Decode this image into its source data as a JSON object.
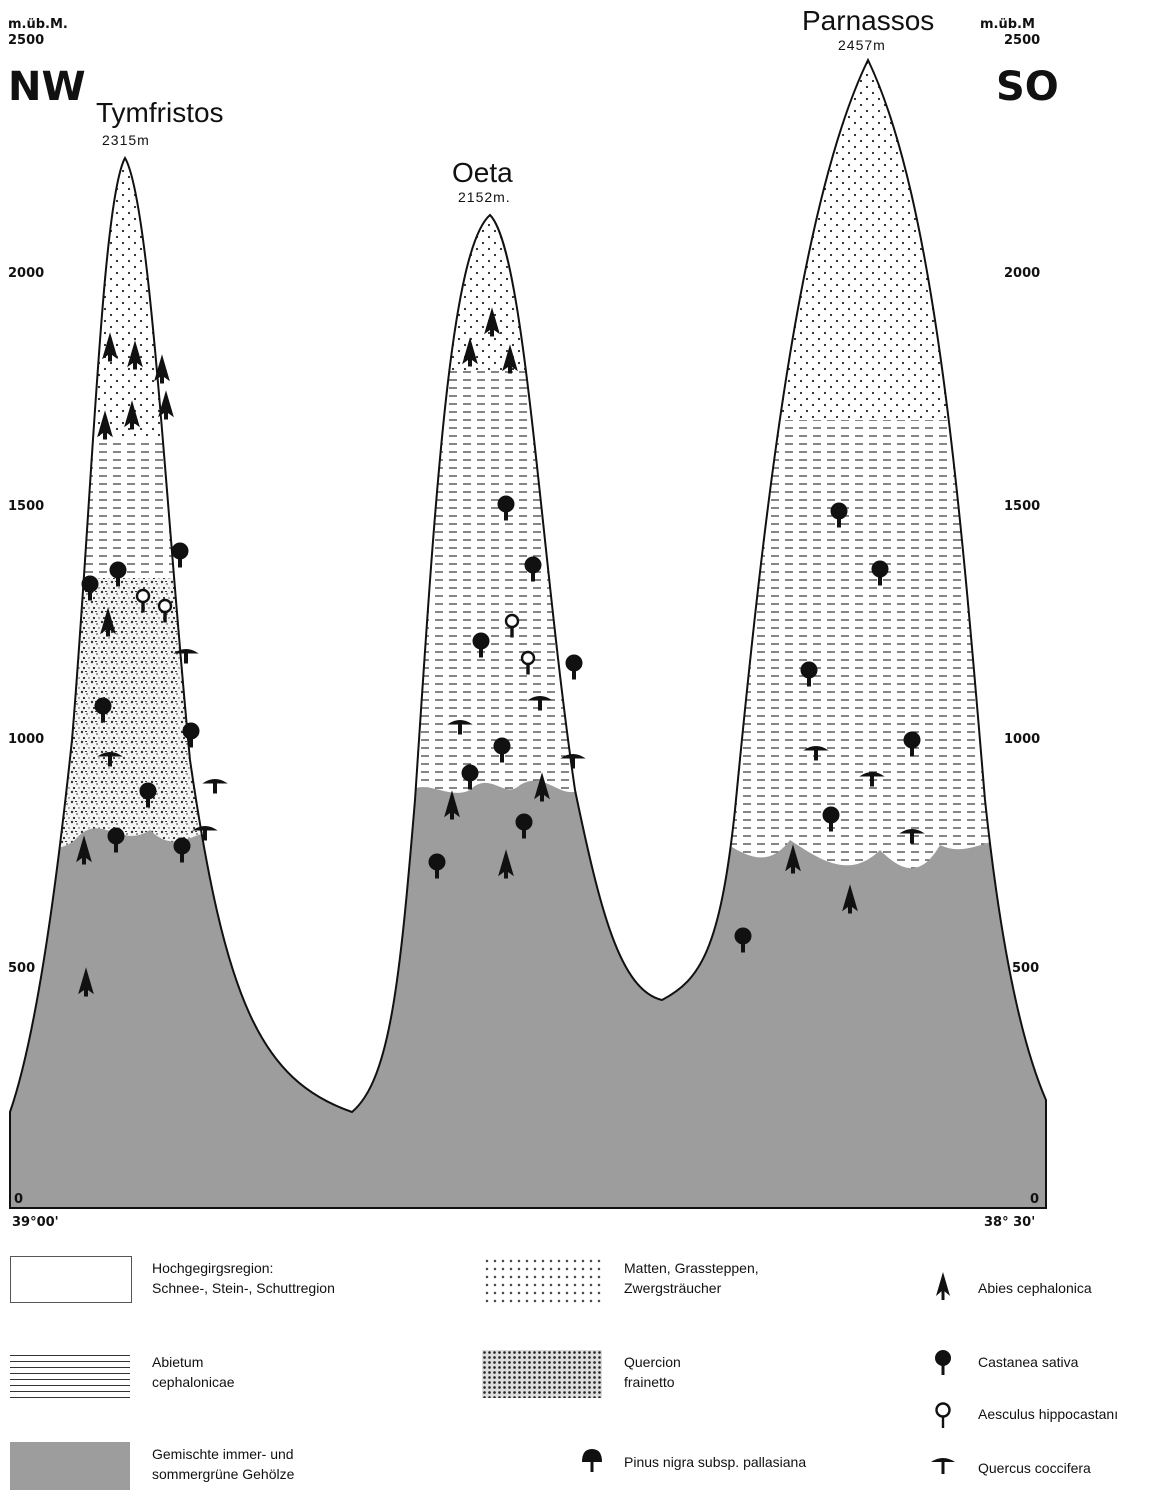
{
  "axis": {
    "unit_left": "m.üb.M.",
    "unit_right": "m.üb.M",
    "ticks": [
      "2500",
      "2000",
      "1500",
      "1000",
      "500",
      "0"
    ],
    "bottom_left": "39°00'",
    "bottom_right": "38° 30'"
  },
  "directions": {
    "left": "NW",
    "right": "SO"
  },
  "peaks": [
    {
      "name": "Tymfristos",
      "altitude": "2315m"
    },
    {
      "name": "Oeta",
      "altitude": "2152m."
    },
    {
      "name": "Parnassos",
      "altitude": "2457m"
    }
  ],
  "legend": {
    "zones": [
      {
        "line1": "Hochgegirgsregion:",
        "line2": "Schnee-, Stein-, Schuttregion"
      },
      {
        "line1": "Matten, Grassteppen,",
        "line2": "Zwergsträucher"
      },
      {
        "line1": "Abietum",
        "line2": "cephalonicae"
      },
      {
        "line1": "Quercion",
        "line2": "frainetto"
      },
      {
        "line1": "Gemischte immer- und",
        "line2": "sommergrüne Gehölze"
      }
    ],
    "species": [
      {
        "label": "Abies cephalonica",
        "icon": "fir-icon"
      },
      {
        "label": "Castanea sativa",
        "icon": "chestnut-icon"
      },
      {
        "label": "Aesculus hippocastanı",
        "icon": "horse-chestnut-icon"
      },
      {
        "label": "Quercus coccifera",
        "icon": "oak-icon"
      },
      {
        "label": "Pinus nigra subsp. pallasiana",
        "icon": "pine-icon"
      }
    ]
  }
}
